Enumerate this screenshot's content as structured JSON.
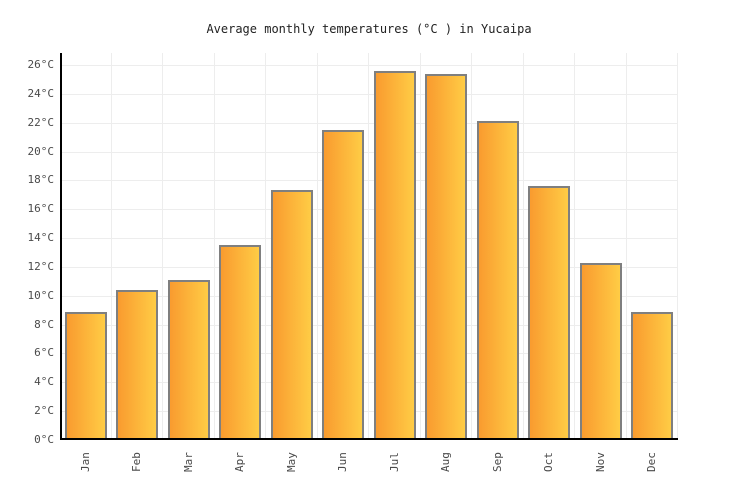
{
  "title": "Average monthly temperatures (°C ) in Yucaipa",
  "chart_data": {
    "type": "bar",
    "title": "Average monthly temperatures (°C ) in Yucaipa",
    "categories": [
      "Jan",
      "Feb",
      "Mar",
      "Apr",
      "May",
      "Jun",
      "Jul",
      "Aug",
      "Sep",
      "Oct",
      "Nov",
      "Dec"
    ],
    "values": [
      8.9,
      10.4,
      11.1,
      13.5,
      17.3,
      21.5,
      25.6,
      25.4,
      22.1,
      17.6,
      12.3,
      8.9
    ],
    "xlabel": "",
    "ylabel": "",
    "unit": "°C",
    "ylim": [
      0,
      26
    ],
    "y_tick_step": 2,
    "y_tick_labels": [
      "0°C",
      "2°C",
      "4°C",
      "6°C",
      "8°C",
      "10°C",
      "12°C",
      "14°C",
      "16°C",
      "18°C",
      "20°C",
      "22°C",
      "24°C",
      "26°C"
    ],
    "grid": true,
    "legend": false,
    "colors": {
      "bar_gradient_left": "#F99B2F",
      "bar_gradient_right": "#FFCC45",
      "bar_border": "#7F7F7F",
      "axis": "#000000",
      "gridline": "#EDEDED",
      "label_text": "#4A4A4A",
      "title_text": "#222222",
      "background": "#FFFFFF"
    }
  }
}
